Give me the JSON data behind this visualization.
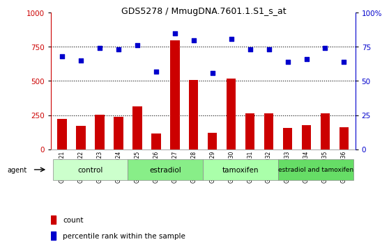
{
  "title": "GDS5278 / MmugDNA.7601.1.S1_s_at",
  "samples": [
    "GSM362921",
    "GSM362922",
    "GSM362923",
    "GSM362924",
    "GSM362925",
    "GSM362926",
    "GSM362927",
    "GSM362928",
    "GSM362929",
    "GSM362930",
    "GSM362931",
    "GSM362932",
    "GSM362933",
    "GSM362934",
    "GSM362935",
    "GSM362936"
  ],
  "counts": [
    220,
    170,
    255,
    240,
    315,
    115,
    800,
    510,
    120,
    520,
    265,
    265,
    155,
    175,
    265,
    160
  ],
  "percentile_ranks": [
    68,
    65,
    74,
    73,
    76,
    57,
    85,
    80,
    56,
    81,
    73,
    73,
    64,
    66,
    74,
    64
  ],
  "groups": [
    {
      "label": "control",
      "start": 0,
      "end": 4,
      "color": "#ccffcc"
    },
    {
      "label": "estradiol",
      "start": 4,
      "end": 8,
      "color": "#88ee88"
    },
    {
      "label": "tamoxifen",
      "start": 8,
      "end": 12,
      "color": "#aaffaa"
    },
    {
      "label": "estradiol and tamoxifen",
      "start": 12,
      "end": 16,
      "color": "#66dd66"
    }
  ],
  "bar_color": "#cc0000",
  "dot_color": "#0000cc",
  "ylim_left": [
    0,
    1000
  ],
  "yticks_left": [
    0,
    250,
    500,
    750,
    1000
  ],
  "yticks_right": [
    0,
    25,
    50,
    75,
    100
  ],
  "grid_color": "#000000",
  "bar_width": 0.5,
  "dotted_lines": [
    250,
    500,
    750
  ],
  "agent_label": "agent",
  "legend_count": "count",
  "legend_percentile": "percentile rank within the sample"
}
